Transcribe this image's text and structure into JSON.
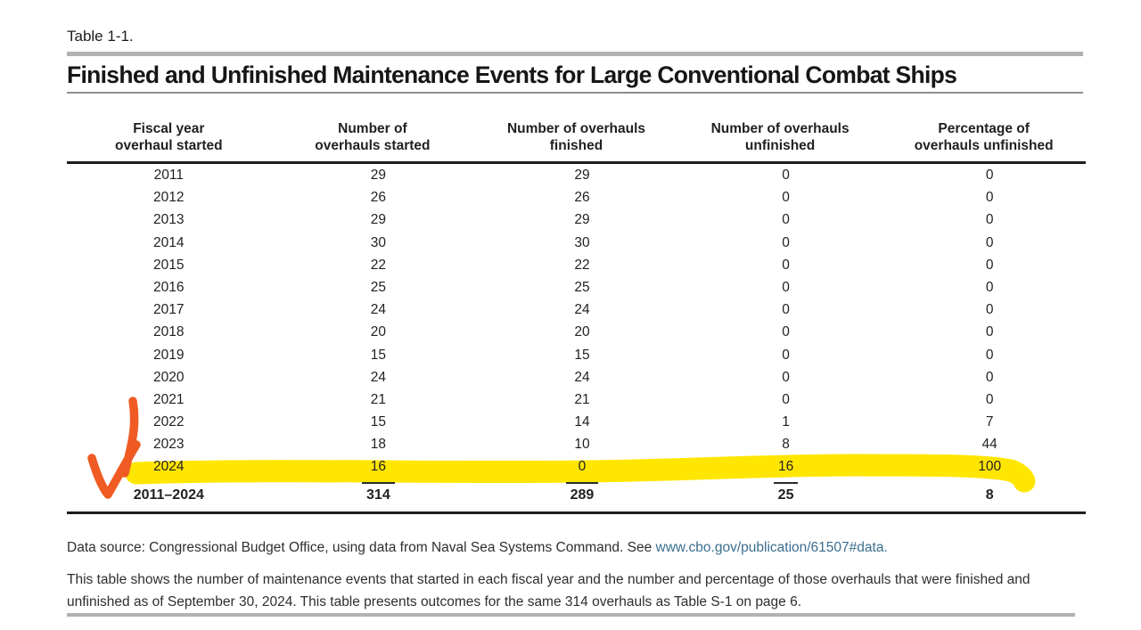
{
  "page": {
    "table_label": "Table 1-1.",
    "title": "Finished and Unfinished Maintenance Events for Large Conventional Combat Ships"
  },
  "table": {
    "columns": [
      {
        "line1": "Fiscal year",
        "line2": "overhaul started"
      },
      {
        "line1": "Number of",
        "line2": "overhauls started"
      },
      {
        "line1": "Number of overhauls",
        "line2": "finished"
      },
      {
        "line1": "Number of overhauls",
        "line2": "unfinished"
      },
      {
        "line1": "Percentage of",
        "line2": "overhauls unfinished"
      }
    ],
    "rows": [
      [
        "2011",
        "29",
        "29",
        "0",
        "0"
      ],
      [
        "2012",
        "26",
        "26",
        "0",
        "0"
      ],
      [
        "2013",
        "29",
        "29",
        "0",
        "0"
      ],
      [
        "2014",
        "30",
        "30",
        "0",
        "0"
      ],
      [
        "2015",
        "22",
        "22",
        "0",
        "0"
      ],
      [
        "2016",
        "25",
        "25",
        "0",
        "0"
      ],
      [
        "2017",
        "24",
        "24",
        "0",
        "0"
      ],
      [
        "2018",
        "20",
        "20",
        "0",
        "0"
      ],
      [
        "2019",
        "15",
        "15",
        "0",
        "0"
      ],
      [
        "2020",
        "24",
        "24",
        "0",
        "0"
      ],
      [
        "2021",
        "21",
        "21",
        "0",
        "0"
      ],
      [
        "2022",
        "15",
        "14",
        "1",
        "7"
      ],
      [
        "2023",
        "18",
        "10",
        "8",
        "44"
      ],
      [
        "2024",
        "16",
        "0",
        "16",
        "100"
      ]
    ],
    "total": {
      "label": "2011–2024",
      "started": "314",
      "finished": "289",
      "unfinished": "25",
      "pct": "8"
    }
  },
  "annotations": {
    "arrow": {
      "color": "#ef5b22",
      "points_to_row": "2024"
    },
    "highlight": {
      "color": "#ffe600",
      "row": "2024"
    }
  },
  "notes": {
    "source_prefix": "Data source: Congressional Budget Office, using data from Naval Sea Systems Command. See ",
    "source_link": "www.cbo.gov/publication/61507#data",
    "source_suffix": ".",
    "body_line1": "This table shows the number of maintenance events that started in each fiscal year and the number and percentage of those overhauls that were finished and",
    "body_line2": "unfinished as of September 30, 2024. This table presents outcomes for the same 314 overhauls as Table S-1 on page 6."
  }
}
